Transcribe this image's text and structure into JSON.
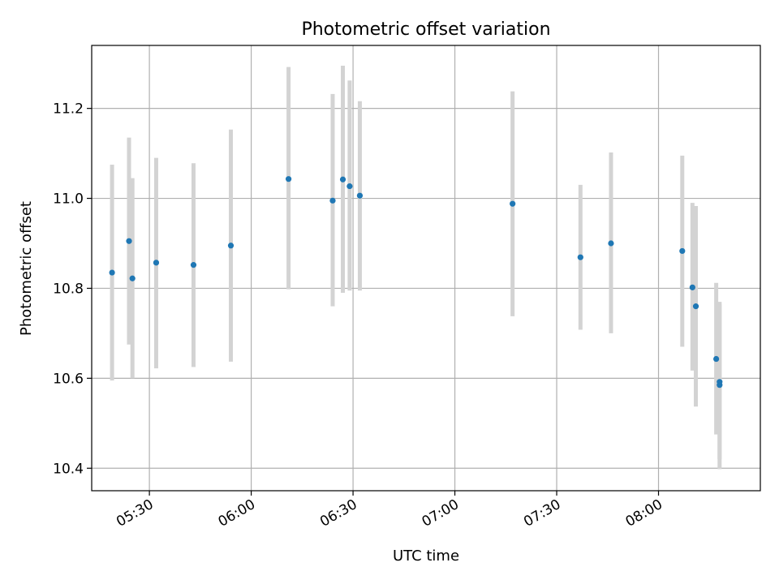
{
  "chart_data": {
    "type": "scatter",
    "title": "Photometric offset variation",
    "xlabel": "UTC time",
    "ylabel": "Photometric offset",
    "xlim": [
      "05:13",
      "08:30"
    ],
    "ylim": [
      10.35,
      11.34
    ],
    "grid": true,
    "x_ticks": [
      "05:30",
      "06:00",
      "06:30",
      "07:00",
      "07:30",
      "08:00"
    ],
    "y_ticks": [
      "10.4",
      "10.6",
      "10.8",
      "11.0",
      "11.2"
    ],
    "points": [
      {
        "t": "05:19",
        "y": 10.835,
        "low": 10.595,
        "high": 11.075
      },
      {
        "t": "05:24",
        "y": 10.905,
        "low": 10.675,
        "high": 11.135
      },
      {
        "t": "05:25",
        "y": 10.822,
        "low": 10.6,
        "high": 11.045
      },
      {
        "t": "05:32",
        "y": 10.857,
        "low": 10.622,
        "high": 11.09
      },
      {
        "t": "05:43",
        "y": 10.852,
        "low": 10.625,
        "high": 11.078
      },
      {
        "t": "05:54",
        "y": 10.895,
        "low": 10.637,
        "high": 11.153
      },
      {
        "t": "06:11",
        "y": 11.043,
        "low": 10.798,
        "high": 11.292
      },
      {
        "t": "06:24",
        "y": 10.995,
        "low": 10.76,
        "high": 11.232
      },
      {
        "t": "06:27",
        "y": 11.042,
        "low": 10.79,
        "high": 11.295
      },
      {
        "t": "06:29",
        "y": 11.027,
        "low": 10.795,
        "high": 11.262
      },
      {
        "t": "06:32",
        "y": 11.006,
        "low": 10.795,
        "high": 11.216
      },
      {
        "t": "07:17",
        "y": 10.988,
        "low": 10.738,
        "high": 11.238
      },
      {
        "t": "07:37",
        "y": 10.869,
        "low": 10.708,
        "high": 11.03
      },
      {
        "t": "07:46",
        "y": 10.9,
        "low": 10.7,
        "high": 11.102
      },
      {
        "t": "08:07",
        "y": 10.883,
        "low": 10.67,
        "high": 11.095
      },
      {
        "t": "08:10",
        "y": 10.802,
        "low": 10.617,
        "high": 10.99
      },
      {
        "t": "08:11",
        "y": 10.76,
        "low": 10.537,
        "high": 10.983
      },
      {
        "t": "08:17",
        "y": 10.643,
        "low": 10.475,
        "high": 10.812
      },
      {
        "t": "08:18",
        "y": 10.585,
        "low": 10.398,
        "high": 10.77
      },
      {
        "t": "08:18",
        "y": 10.592,
        "low": 10.42,
        "high": 10.765
      }
    ],
    "marker_color": "#1f77b4",
    "errorbar_color": "#d3d3d3"
  }
}
